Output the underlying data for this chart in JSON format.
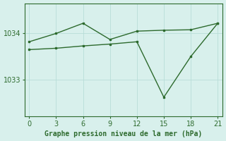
{
  "line1_x": [
    0,
    3,
    6,
    9,
    12,
    15,
    18,
    21
  ],
  "line1_y": [
    1033.82,
    1034.0,
    1034.22,
    1033.87,
    1034.05,
    1034.07,
    1034.08,
    1034.22
  ],
  "line2_x": [
    0,
    3,
    6,
    9,
    12,
    15,
    18,
    21
  ],
  "line2_y": [
    1033.65,
    1033.68,
    1033.73,
    1033.77,
    1033.82,
    1032.62,
    1033.5,
    1034.22
  ],
  "line_color": "#2d6a2d",
  "bg_color": "#d8f0ec",
  "grid_color": "#b8ddd8",
  "xlabel": "Graphe pression niveau de la mer (hPa)",
  "xlabel_color": "#2d6a2d",
  "tick_color": "#2d6a2d",
  "xticks": [
    0,
    3,
    6,
    9,
    12,
    15,
    18,
    21
  ],
  "yticks": [
    1033,
    1034
  ],
  "xlim": [
    -0.5,
    21.5
  ],
  "ylim": [
    1032.2,
    1034.65
  ],
  "xlabel_fontsize": 7,
  "tick_fontsize": 7
}
